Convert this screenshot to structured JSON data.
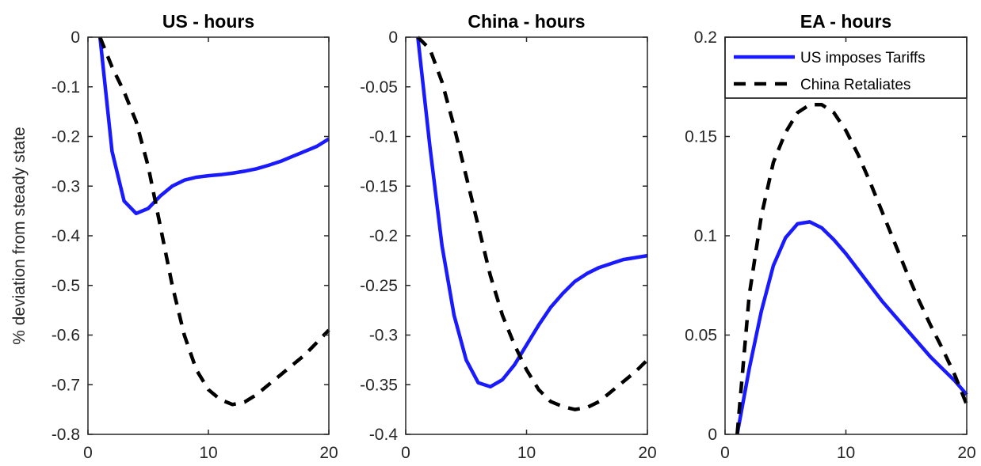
{
  "chart_data": [
    {
      "type": "line",
      "title": "US - hours",
      "ylabel": "% deviation from steady state",
      "xlim": [
        0,
        20
      ],
      "ylim": [
        -0.8,
        0
      ],
      "xticks": [
        0,
        10,
        20
      ],
      "yticks": [
        0,
        -0.1,
        -0.2,
        -0.3,
        -0.4,
        -0.5,
        -0.6,
        -0.7,
        -0.8
      ],
      "ytick_labels": [
        "0",
        "-0.1",
        "-0.2",
        "-0.3",
        "-0.4",
        "-0.5",
        "-0.6",
        "-0.7",
        "-0.8"
      ],
      "series": [
        {
          "name": "US imposes Tariffs",
          "color": "#1a1aff",
          "style": "solid",
          "x": [
            1,
            2,
            3,
            4,
            5,
            6,
            7,
            8,
            9,
            10,
            11,
            12,
            13,
            14,
            15,
            16,
            17,
            18,
            19,
            20
          ],
          "y": [
            0,
            -0.23,
            -0.33,
            -0.355,
            -0.345,
            -0.32,
            -0.3,
            -0.288,
            -0.282,
            -0.279,
            -0.277,
            -0.274,
            -0.27,
            -0.265,
            -0.258,
            -0.25,
            -0.24,
            -0.23,
            -0.22,
            -0.205
          ]
        },
        {
          "name": "China Retaliates",
          "color": "#000000",
          "style": "dashed",
          "x": [
            1,
            2,
            3,
            4,
            5,
            6,
            7,
            8,
            9,
            10,
            11,
            12,
            13,
            14,
            15,
            16,
            17,
            18,
            19,
            20
          ],
          "y": [
            0,
            -0.06,
            -0.11,
            -0.17,
            -0.26,
            -0.38,
            -0.5,
            -0.6,
            -0.67,
            -0.71,
            -0.73,
            -0.74,
            -0.735,
            -0.72,
            -0.7,
            -0.68,
            -0.66,
            -0.64,
            -0.615,
            -0.59
          ]
        }
      ]
    },
    {
      "type": "line",
      "title": "China - hours",
      "xlim": [
        0,
        20
      ],
      "ylim": [
        -0.4,
        0
      ],
      "xticks": [
        0,
        10,
        20
      ],
      "yticks": [
        0,
        -0.05,
        -0.1,
        -0.15,
        -0.2,
        -0.25,
        -0.3,
        -0.35,
        -0.4
      ],
      "ytick_labels": [
        "0",
        "-0.05",
        "-0.1",
        "-0.15",
        "-0.2",
        "-0.25",
        "-0.3",
        "-0.35",
        "-0.4"
      ],
      "series": [
        {
          "name": "US imposes Tariffs",
          "color": "#1a1aff",
          "style": "solid",
          "x": [
            1,
            2,
            3,
            4,
            5,
            6,
            7,
            8,
            9,
            10,
            11,
            12,
            13,
            14,
            15,
            16,
            17,
            18,
            19,
            20
          ],
          "y": [
            0,
            -0.11,
            -0.21,
            -0.28,
            -0.325,
            -0.348,
            -0.352,
            -0.345,
            -0.33,
            -0.31,
            -0.29,
            -0.272,
            -0.258,
            -0.246,
            -0.238,
            -0.232,
            -0.228,
            -0.224,
            -0.222,
            -0.22
          ]
        },
        {
          "name": "China Retaliates",
          "color": "#000000",
          "style": "dashed",
          "x": [
            1,
            2,
            3,
            4,
            5,
            6,
            7,
            8,
            9,
            10,
            11,
            12,
            13,
            14,
            15,
            16,
            17,
            18,
            19,
            20
          ],
          "y": [
            0,
            -0.012,
            -0.045,
            -0.09,
            -0.14,
            -0.19,
            -0.24,
            -0.28,
            -0.31,
            -0.335,
            -0.355,
            -0.367,
            -0.372,
            -0.375,
            -0.373,
            -0.367,
            -0.357,
            -0.347,
            -0.337,
            -0.325
          ]
        }
      ]
    },
    {
      "type": "line",
      "title": "EA - hours",
      "xlim": [
        0,
        20
      ],
      "ylim": [
        0,
        0.2
      ],
      "xticks": [
        0,
        10,
        20
      ],
      "yticks": [
        0,
        0.05,
        0.1,
        0.15,
        0.2
      ],
      "ytick_labels": [
        "0",
        "0.05",
        "0.1",
        "0.15",
        "0.2"
      ],
      "legend": {
        "placement": "top",
        "entries": [
          "US imposes Tariffs",
          "China Retaliates"
        ]
      },
      "series": [
        {
          "name": "US imposes Tariffs",
          "color": "#1a1aff",
          "style": "solid",
          "x": [
            1,
            2,
            3,
            4,
            5,
            6,
            7,
            8,
            9,
            10,
            11,
            12,
            13,
            14,
            15,
            16,
            17,
            18,
            19,
            20
          ],
          "y": [
            0,
            0.033,
            0.062,
            0.085,
            0.099,
            0.106,
            0.107,
            0.104,
            0.098,
            0.091,
            0.083,
            0.075,
            0.067,
            0.06,
            0.053,
            0.046,
            0.039,
            0.033,
            0.027,
            0.02
          ]
        },
        {
          "name": "China Retaliates",
          "color": "#000000",
          "style": "dashed",
          "x": [
            1,
            2,
            3,
            4,
            5,
            6,
            7,
            8,
            9,
            10,
            11,
            12,
            13,
            14,
            15,
            16,
            17,
            18,
            19,
            20
          ],
          "y": [
            0,
            0.07,
            0.11,
            0.137,
            0.152,
            0.162,
            0.166,
            0.166,
            0.162,
            0.153,
            0.141,
            0.127,
            0.112,
            0.097,
            0.082,
            0.068,
            0.055,
            0.043,
            0.03,
            0.015
          ]
        }
      ]
    }
  ]
}
